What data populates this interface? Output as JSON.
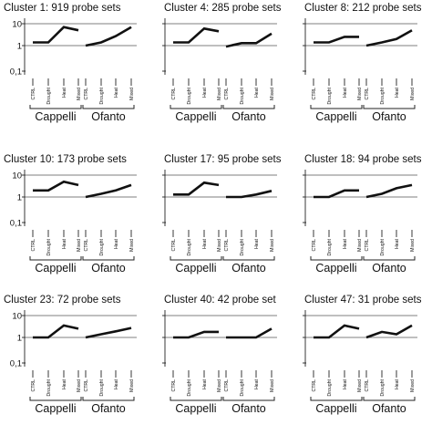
{
  "chart_data": [
    {
      "type": "line",
      "title": "Cluster 1: 919 probe sets",
      "y_ticks": [
        "10",
        "1",
        "0,1"
      ],
      "log_scale": true,
      "ylim": [
        0.1,
        10
      ],
      "groups": [
        {
          "name": "Cappelli",
          "categories": [
            "CTRL",
            "Drought",
            "Heat",
            "Mixed"
          ],
          "values": [
            1.4,
            1.4,
            7,
            5
          ]
        },
        {
          "name": "Ofanto",
          "categories": [
            "CTRL",
            "Drought",
            "Heat",
            "Mixed"
          ],
          "values": [
            1,
            1.4,
            2.7,
            7
          ]
        }
      ]
    },
    {
      "type": "line",
      "title": "Cluster 4: 285 probe sets",
      "y_ticks": [
        "10",
        "1",
        "0,1"
      ],
      "log_scale": true,
      "ylim": [
        0.1,
        10
      ],
      "groups": [
        {
          "name": "Cappelli",
          "categories": [
            "CTRL",
            "Drought",
            "Heat",
            "Mixed"
          ],
          "values": [
            1.4,
            1.4,
            6,
            4.5
          ]
        },
        {
          "name": "Ofanto",
          "categories": [
            "CTRL",
            "Drought",
            "Heat",
            "Mixed"
          ],
          "values": [
            0.9,
            1.3,
            1.3,
            3.5
          ]
        }
      ]
    },
    {
      "type": "line",
      "title": "Cluster 8: 212 probe sets",
      "y_ticks": [
        "10",
        "1",
        "0,1"
      ],
      "log_scale": true,
      "ylim": [
        0.1,
        10
      ],
      "groups": [
        {
          "name": "Cappelli",
          "categories": [
            "CTRL",
            "Drought",
            "Heat",
            "Mixed"
          ],
          "values": [
            1.4,
            1.4,
            2.5,
            2.5
          ]
        },
        {
          "name": "Ofanto",
          "categories": [
            "CTRL",
            "Drought",
            "Heat",
            "Mixed"
          ],
          "values": [
            1,
            1.4,
            2,
            5
          ]
        }
      ]
    },
    {
      "type": "line",
      "title": "Cluster 10: 173 probe sets",
      "y_ticks": [
        "10",
        "1",
        "0,1"
      ],
      "log_scale": true,
      "ylim": [
        0.1,
        10
      ],
      "groups": [
        {
          "name": "Cappelli",
          "categories": [
            "CTRL",
            "Drought",
            "Heat",
            "Mixed"
          ],
          "values": [
            2,
            2,
            5,
            3.5
          ]
        },
        {
          "name": "Ofanto",
          "categories": [
            "CTRL",
            "Drought",
            "Heat",
            "Mixed"
          ],
          "values": [
            1,
            1.4,
            2,
            3.5
          ]
        }
      ]
    },
    {
      "type": "line",
      "title": "Cluster 17: 95 probe sets",
      "y_ticks": [
        "10",
        "1",
        "0,1"
      ],
      "log_scale": true,
      "ylim": [
        0.1,
        10
      ],
      "groups": [
        {
          "name": "Cappelli",
          "categories": [
            "CTRL",
            "Drought",
            "Heat",
            "Mixed"
          ],
          "values": [
            1.3,
            1.3,
            4.5,
            3.5
          ]
        },
        {
          "name": "Ofanto",
          "categories": [
            "CTRL",
            "Drought",
            "Heat",
            "Mixed"
          ],
          "values": [
            1,
            1,
            1.3,
            1.9
          ]
        }
      ]
    },
    {
      "type": "line",
      "title": "Cluster 18: 94 probe sets",
      "y_ticks": [
        "10",
        "1",
        "0,1"
      ],
      "log_scale": true,
      "ylim": [
        0.1,
        10
      ],
      "groups": [
        {
          "name": "Cappelli",
          "categories": [
            "CTRL",
            "Drought",
            "Heat",
            "Mixed"
          ],
          "values": [
            1,
            1,
            2,
            2
          ]
        },
        {
          "name": "Ofanto",
          "categories": [
            "CTRL",
            "Drought",
            "Heat",
            "Mixed"
          ],
          "values": [
            1,
            1.4,
            2.5,
            3.5
          ]
        }
      ]
    },
    {
      "type": "line",
      "title": "Cluster 23: 72 probe sets",
      "y_ticks": [
        "10",
        "1",
        "0,1"
      ],
      "log_scale": true,
      "ylim": [
        0.1,
        10
      ],
      "groups": [
        {
          "name": "Cappelli",
          "categories": [
            "CTRL",
            "Drought",
            "Heat",
            "Mixed"
          ],
          "values": [
            1,
            1,
            3.5,
            2.5
          ]
        },
        {
          "name": "Ofanto",
          "categories": [
            "CTRL",
            "Drought",
            "Heat",
            "Mixed"
          ],
          "values": [
            1,
            1.4,
            1.9,
            2.7
          ]
        }
      ]
    },
    {
      "type": "line",
      "title": "Cluster 40: 42 probe set",
      "y_ticks": [
        "10",
        "1",
        "0,1"
      ],
      "log_scale": true,
      "ylim": [
        0.1,
        10
      ],
      "groups": [
        {
          "name": "Cappelli",
          "categories": [
            "CTRL",
            "Drought",
            "Heat",
            "Mixed"
          ],
          "values": [
            1,
            1,
            1.8,
            1.8
          ]
        },
        {
          "name": "Ofanto",
          "categories": [
            "CTRL",
            "Drought",
            "Heat",
            "Mixed"
          ],
          "values": [
            1,
            1,
            1,
            2.5
          ]
        }
      ]
    },
    {
      "type": "line",
      "title": "Cluster 47: 31 probe sets",
      "y_ticks": [
        "10",
        "1",
        "0,1"
      ],
      "log_scale": true,
      "ylim": [
        0.1,
        10
      ],
      "groups": [
        {
          "name": "Cappelli",
          "categories": [
            "CTRL",
            "Drought",
            "Heat",
            "Mixed"
          ],
          "values": [
            1,
            1,
            3.5,
            2.5
          ]
        },
        {
          "name": "Ofanto",
          "categories": [
            "CTRL",
            "Drought",
            "Heat",
            "Mixed"
          ],
          "values": [
            1,
            1.8,
            1.4,
            3.5
          ]
        }
      ]
    }
  ]
}
